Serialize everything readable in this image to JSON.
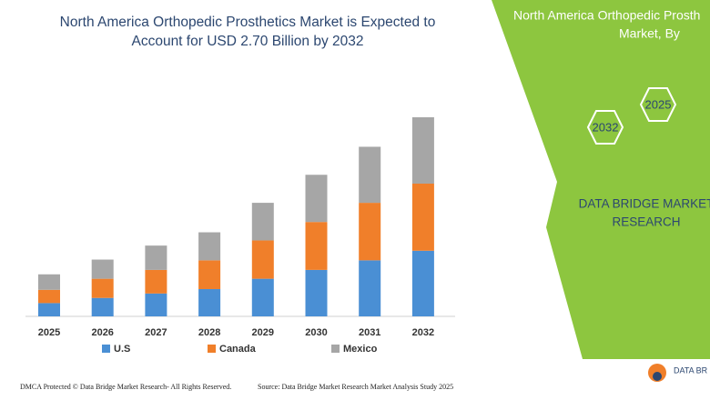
{
  "chart_data": {
    "type": "stacked-bar",
    "title": [
      "North America Orthopedic Prosthetics Market is Expected to",
      "Account for USD 2.70 Billion by 2032"
    ],
    "categories": [
      "2025",
      "2026",
      "2027",
      "2028",
      "2029",
      "2030",
      "2031",
      "2032"
    ],
    "series": [
      {
        "name": "U.S",
        "color": "#4a8fd4",
        "values": [
          0.18,
          0.25,
          0.31,
          0.37,
          0.51,
          0.63,
          0.76,
          0.89
        ]
      },
      {
        "name": "Canada",
        "color": "#f07f2a",
        "values": [
          0.18,
          0.26,
          0.32,
          0.39,
          0.52,
          0.65,
          0.78,
          0.91
        ]
      },
      {
        "name": "Mexico",
        "color": "#a6a6a6",
        "values": [
          0.21,
          0.26,
          0.33,
          0.38,
          0.51,
          0.64,
          0.76,
          0.9
        ]
      }
    ],
    "ylim": [
      0,
      2.7
    ],
    "legend": "bottom"
  },
  "panel": {
    "heading": [
      "North America Orthopedic Prosth",
      "Market, By"
    ],
    "hexagons": [
      "2032",
      "2025"
    ],
    "brand": [
      "DATA BRIDGE MARKET",
      "RESEARCH"
    ]
  },
  "footer": {
    "copyright": "DMCA Protected © Data Bridge Market Research- All Rights Reserved.",
    "source": "Source: Data Bridge Market Research Market Analysis Study 2025",
    "logo": "DATA BR"
  }
}
